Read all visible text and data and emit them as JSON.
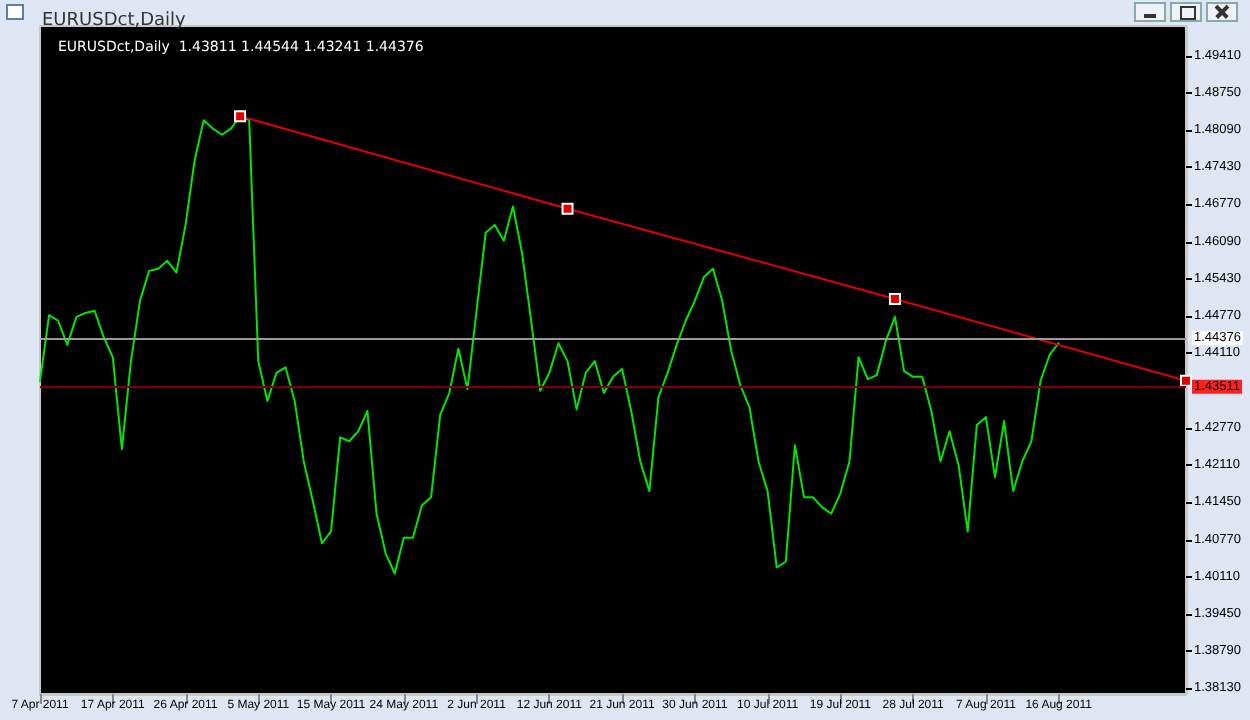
{
  "chart_data": {
    "type": "line",
    "title": "EURUSDct,Daily",
    "subtitle": "EURUSDct,Daily  1.43811 1.44544 1.43241 1.44376",
    "categories": [
      "7 Apr 2011",
      null,
      null,
      null,
      null,
      null,
      null,
      null,
      "17 Apr 2011",
      null,
      null,
      null,
      null,
      null,
      null,
      null,
      "26 Apr 2011",
      null,
      null,
      null,
      null,
      null,
      null,
      null,
      "5 May 2011",
      null,
      null,
      null,
      null,
      null,
      null,
      null,
      "15 May 2011",
      null,
      null,
      null,
      null,
      null,
      null,
      null,
      "24 May 2011",
      null,
      null,
      null,
      null,
      null,
      null,
      null,
      "2 Jun 2011",
      null,
      null,
      null,
      null,
      null,
      null,
      null,
      "12 Jun 2011",
      null,
      null,
      null,
      null,
      null,
      null,
      null,
      "21 Jun 2011",
      null,
      null,
      null,
      null,
      null,
      null,
      null,
      "30 Jun 2011",
      null,
      null,
      null,
      null,
      null,
      null,
      null,
      "10 Jul 2011",
      null,
      null,
      null,
      null,
      null,
      null,
      null,
      "19 Jul 2011",
      null,
      null,
      null,
      null,
      null,
      null,
      null,
      "28 Jul 2011",
      null,
      null,
      null,
      null,
      null,
      null,
      null,
      "7 Aug 2011",
      null,
      null,
      null,
      null,
      null,
      null,
      null,
      "16 Aug 2011",
      null,
      null,
      null,
      null,
      null,
      null,
      null,
      null,
      null,
      null,
      null,
      null,
      null,
      null
    ],
    "series": [
      {
        "color": "#00e600",
        "values": [
          1.4361,
          1.4479,
          1.4469,
          1.4426,
          1.4476,
          1.4483,
          1.4487,
          1.444,
          1.4404,
          1.424,
          1.4397,
          1.4505,
          1.4558,
          1.4562,
          1.4576,
          1.4555,
          1.464,
          1.4755,
          1.4827,
          1.4812,
          1.4801,
          1.4812,
          1.4834,
          1.4827,
          1.4397,
          1.4326,
          1.4376,
          1.4386,
          1.4326,
          1.4218,
          1.4147,
          1.4072,
          1.4093,
          1.4261,
          1.4254,
          1.4272,
          1.4308,
          1.4125,
          1.4054,
          1.4018,
          1.4082,
          1.4082,
          1.414,
          1.4154,
          1.4301,
          1.434,
          1.4419,
          1.4347,
          1.4487,
          1.4626,
          1.464,
          1.4612,
          1.4673,
          1.459,
          1.4469,
          1.4344,
          1.4376,
          1.4429,
          1.4397,
          1.4311,
          1.4376,
          1.4397,
          1.434,
          1.4369,
          1.4383,
          1.4308,
          1.4218,
          1.4165,
          1.4333,
          1.4376,
          1.4426,
          1.4469,
          1.4505,
          1.4547,
          1.4562,
          1.4505,
          1.4415,
          1.4354,
          1.4315,
          1.4218,
          1.4165,
          1.4029,
          1.4039,
          1.4247,
          1.4154,
          1.4154,
          1.4136,
          1.4125,
          1.4161,
          1.4218,
          1.4404,
          1.4365,
          1.4372,
          1.4433,
          1.4476,
          1.4379,
          1.4369,
          1.4369,
          1.4308,
          1.4218,
          1.4272,
          1.4211,
          1.4093,
          1.4283,
          1.4297,
          1.419,
          1.429,
          1.4165,
          1.4218,
          1.4254,
          1.4361,
          1.4408,
          1.4429,
          null,
          null,
          null,
          null,
          null,
          null,
          null,
          null,
          null,
          null,
          null,
          null,
          null,
          null
        ]
      },
      {
        "type": "line",
        "color": "#e00000",
        "marker": "square",
        "values": [
          null,
          null,
          null,
          null,
          null,
          null,
          null,
          null,
          null,
          null,
          null,
          null,
          null,
          null,
          null,
          null,
          null,
          null,
          null,
          null,
          null,
          null,
          1.4834,
          null,
          null,
          null,
          null,
          null,
          null,
          null,
          null,
          null,
          null,
          null,
          null,
          null,
          null,
          null,
          null,
          null,
          null,
          null,
          null,
          null,
          null,
          null,
          null,
          null,
          null,
          null,
          null,
          null,
          null,
          null,
          null,
          null,
          null,
          null,
          1.4669,
          null,
          null,
          null,
          null,
          null,
          null,
          null,
          null,
          null,
          null,
          null,
          null,
          null,
          null,
          null,
          null,
          null,
          null,
          null,
          null,
          null,
          null,
          null,
          null,
          null,
          null,
          null,
          null,
          null,
          null,
          null,
          null,
          null,
          null,
          null,
          1.4508,
          null,
          null,
          null,
          null,
          null,
          null,
          null,
          null,
          null,
          null,
          null,
          null,
          null,
          null,
          null,
          null,
          null,
          null,
          null,
          null,
          null,
          null,
          null,
          null,
          null,
          null,
          null,
          null,
          null,
          null,
          null,
          1.4362
        ]
      }
    ],
    "ylim": [
      1.3803,
      1.4995
    ],
    "yticks": [
      {
        "value": 1.4941,
        "label": "1.49410"
      },
      {
        "value": 1.4875,
        "label": "1.48750"
      },
      {
        "value": 1.4809,
        "label": "1.48090"
      },
      {
        "value": 1.4743,
        "label": "1.47430"
      },
      {
        "value": 1.4677,
        "label": "1.46770"
      },
      {
        "value": 1.4609,
        "label": "1.46090"
      },
      {
        "value": 1.4543,
        "label": "1.45430"
      },
      {
        "value": 1.4477,
        "label": "1.44770"
      },
      {
        "value": 1.4411,
        "label": "1.44110"
      },
      {
        "value": 1.4277,
        "label": "1.42770"
      },
      {
        "value": 1.4211,
        "label": "1.42110"
      },
      {
        "value": 1.4145,
        "label": "1.41450"
      },
      {
        "value": 1.4077,
        "label": "1.40770"
      },
      {
        "value": 1.4011,
        "label": "1.40110"
      },
      {
        "value": 1.3945,
        "label": "1.39450"
      },
      {
        "value": 1.3879,
        "label": "1.38790"
      },
      {
        "value": 1.3813,
        "label": "1.38130"
      }
    ],
    "ref_lines": [
      {
        "axis": "y",
        "value": 1.44376,
        "label": "1.44376",
        "color": "#9a9a9a"
      },
      {
        "axis": "y",
        "value": 1.43511,
        "label": "1.43511",
        "color": "#800000"
      }
    ]
  }
}
